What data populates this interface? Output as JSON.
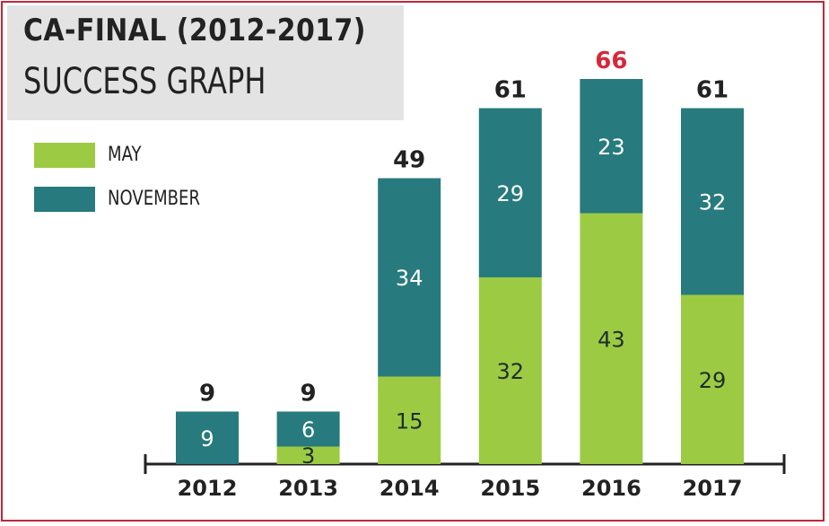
{
  "colors": {
    "may": "#9ccb43",
    "november": "#277a7d",
    "highlight": "#d6283c",
    "border": "#c0283c"
  },
  "chart_data": {
    "type": "bar",
    "stacked": true,
    "title": "CA-FINAL (2012-2017)",
    "subtitle": "SUCCESS GRAPH",
    "categories": [
      "2012",
      "2013",
      "2014",
      "2015",
      "2016",
      "2017"
    ],
    "series": [
      {
        "name": "MAY",
        "values": [
          0,
          3,
          15,
          32,
          43,
          29
        ]
      },
      {
        "name": "NOVEMBER",
        "values": [
          9,
          6,
          34,
          29,
          23,
          32
        ]
      }
    ],
    "totals": [
      "9",
      "9",
      "49",
      "61",
      "66",
      "61"
    ],
    "highlight_category": "2016",
    "ylim": [
      0,
      66
    ],
    "legend_position": "top-left",
    "grid": false
  }
}
